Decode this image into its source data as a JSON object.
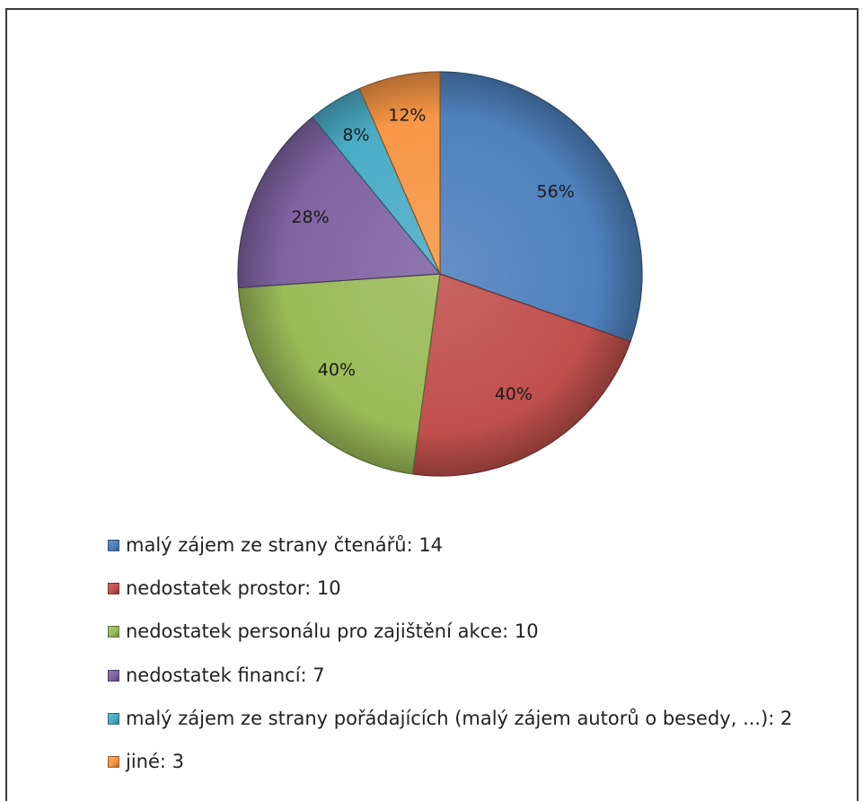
{
  "chart_data": {
    "type": "pie",
    "slices": [
      {
        "label": "malý zájem ze strany čtenářů: 14",
        "value": 14,
        "pct_label": "56%",
        "color": "#4f81bd"
      },
      {
        "label": "nedostatek prostor: 10",
        "value": 10,
        "pct_label": "40%",
        "color": "#c0504d"
      },
      {
        "label": "nedostatek personálu pro zajištění akce: 10",
        "value": 10,
        "pct_label": "40%",
        "color": "#9bbb59"
      },
      {
        "label": "nedostatek financí: 7",
        "value": 7,
        "pct_label": "28%",
        "color": "#8064a2"
      },
      {
        "label": "malý zájem ze strany pořádajících (malý zájem autorů o besedy, ...): 2",
        "value": 2,
        "pct_label": "8%",
        "color": "#4bacc6"
      },
      {
        "label": "jiné: 3",
        "value": 3,
        "pct_label": "12%",
        "color": "#f79646"
      }
    ],
    "start_angle_deg": 0,
    "direction": "clockwise",
    "legend_position": "bottom"
  }
}
